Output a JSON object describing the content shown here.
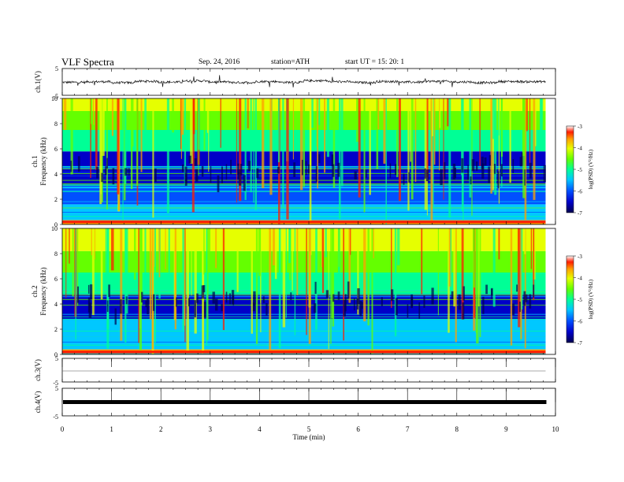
{
  "header": {
    "title": "VLF  Spectra",
    "date": "Sep. 24, 2016",
    "station": "station=ATH",
    "start": "start  UT  =   15: 20: 1"
  },
  "chart_data": [
    {
      "id": "ch1-waveform",
      "type": "line",
      "ylabel": "ch.1(V)",
      "ylim": [
        -5,
        5
      ],
      "y_ticks": [
        "5",
        "-5"
      ],
      "xlim": [
        0,
        10
      ],
      "series": [
        {
          "values": [
            -0.2,
            0.1,
            -0.4,
            0.3,
            -0.1,
            0.5,
            0.0,
            -0.3,
            0.2,
            -0.2,
            0.6,
            0.1,
            -0.3,
            0.2,
            -0.1,
            0.3,
            0.0,
            -0.4,
            0.2,
            0.1
          ]
        }
      ]
    },
    {
      "id": "ch1-spectrogram",
      "type": "heatmap",
      "ylabel": "ch.1\nFrequency (kHz)",
      "ylim": [
        0,
        10
      ],
      "xlim": [
        0,
        10
      ],
      "y_ticks": [
        "0",
        "2",
        "4",
        "6",
        "8",
        "10"
      ],
      "colorbar": {
        "label": "log(PSD) (V²/Hz)",
        "range": [
          -7,
          -3
        ],
        "ticks": [
          "-3",
          "-4",
          "-5",
          "-6",
          "-7"
        ]
      }
    },
    {
      "id": "ch2-spectrogram",
      "type": "heatmap",
      "ylabel": "ch.2\nFrequency (kHz)",
      "ylim": [
        0,
        10
      ],
      "xlim": [
        0,
        10
      ],
      "y_ticks": [
        "0",
        "2",
        "4",
        "6",
        "8",
        "10"
      ],
      "colorbar": {
        "label": "log(PSD) (V²/Hz)",
        "range": [
          -7,
          -3
        ],
        "ticks": [
          "-3",
          "-4",
          "-5",
          "-6",
          "-7"
        ]
      }
    },
    {
      "id": "ch3-waveform",
      "type": "line",
      "ylabel": "ch.3(V)",
      "ylim": [
        -5,
        5
      ],
      "y_ticks": [
        "5",
        "-5"
      ],
      "xlim": [
        0,
        10
      ],
      "series": [
        {
          "values": [
            0,
            0,
            0,
            0,
            0,
            0,
            0,
            0,
            0,
            0,
            0,
            0,
            0,
            0,
            0,
            0,
            0,
            0,
            0,
            0
          ]
        }
      ]
    },
    {
      "id": "ch4-waveform",
      "type": "line",
      "ylabel": "ch.4(V)",
      "ylim": [
        -5,
        5
      ],
      "y_ticks": [
        "5",
        "-5"
      ],
      "xlim": [
        0,
        10
      ],
      "series": [
        {
          "values": [
            0,
            0,
            0,
            0,
            0,
            0,
            0,
            0,
            0,
            0,
            0,
            0,
            0,
            0,
            0,
            0,
            0,
            0,
            0,
            0
          ]
        }
      ]
    }
  ],
  "x_axis": {
    "label": "Time  (min)",
    "ticks": [
      "0",
      "1",
      "2",
      "3",
      "4",
      "5",
      "6",
      "7",
      "8",
      "9",
      "10"
    ],
    "data_end": 9.8
  },
  "colors": {
    "spectrum": [
      "#000050",
      "#0000c8",
      "#0050ff",
      "#00c8ff",
      "#00ff96",
      "#64ff00",
      "#e6ff00",
      "#ffa000",
      "#ff1e00",
      "#ffffff"
    ]
  }
}
